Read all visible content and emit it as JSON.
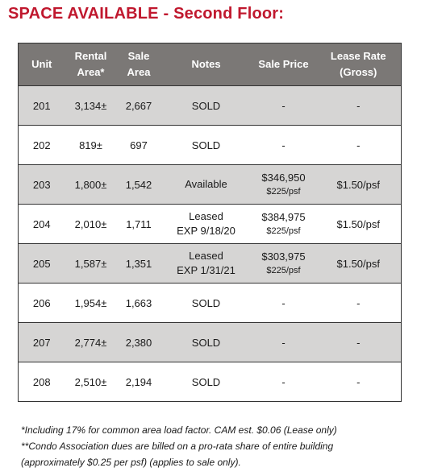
{
  "title": "SPACE AVAILABLE - Second Floor:",
  "headers": {
    "unit": "Unit",
    "rental_area_1": "Rental",
    "rental_area_2": "Area*",
    "sale_area_1": "Sale",
    "sale_area_2": "Area",
    "notes": "Notes",
    "sale_price": "Sale Price",
    "lease_rate_1": "Lease Rate",
    "lease_rate_2": "(Gross)"
  },
  "rows": [
    {
      "unit": "201",
      "rental_area": "3,134±",
      "sale_area": "2,667",
      "notes": "SOLD",
      "notes2": "",
      "sale_price": "-",
      "sale_psf": "",
      "lease_rate": "-"
    },
    {
      "unit": "202",
      "rental_area": "819±",
      "sale_area": "697",
      "notes": "SOLD",
      "notes2": "",
      "sale_price": "-",
      "sale_psf": "",
      "lease_rate": "-"
    },
    {
      "unit": "203",
      "rental_area": "1,800±",
      "sale_area": "1,542",
      "notes": "Available",
      "notes2": "",
      "sale_price": "$346,950",
      "sale_psf": "$225/psf",
      "lease_rate": "$1.50/psf"
    },
    {
      "unit": "204",
      "rental_area": "2,010±",
      "sale_area": "1,711",
      "notes": "Leased",
      "notes2": "EXP 9/18/20",
      "sale_price": "$384,975",
      "sale_psf": "$225/psf",
      "lease_rate": "$1.50/psf"
    },
    {
      "unit": "205",
      "rental_area": "1,587±",
      "sale_area": "1,351",
      "notes": "Leased",
      "notes2": "EXP 1/31/21",
      "sale_price": "$303,975",
      "sale_psf": "$225/psf",
      "lease_rate": "$1.50/psf"
    },
    {
      "unit": "206",
      "rental_area": "1,954±",
      "sale_area": "1,663",
      "notes": "SOLD",
      "notes2": "",
      "sale_price": "-",
      "sale_psf": "",
      "lease_rate": "-"
    },
    {
      "unit": "207",
      "rental_area": "2,774±",
      "sale_area": "2,380",
      "notes": "SOLD",
      "notes2": "",
      "sale_price": "-",
      "sale_psf": "",
      "lease_rate": "-"
    },
    {
      "unit": "208",
      "rental_area": "2,510±",
      "sale_area": "2,194",
      "notes": "SOLD",
      "notes2": "",
      "sale_price": "-",
      "sale_psf": "",
      "lease_rate": "-"
    }
  ],
  "footnotes": [
    "*Including 17% for common area load factor. CAM est. $0.06 (Lease only)",
    "**Condo Association dues are billed on a pro-rata share of entire building",
    "(approximately $0.25 per psf) (applies to sale only)."
  ],
  "colors": {
    "title": "#c0182e",
    "header_bg": "#7b7876",
    "shaded_row": "#d6d5d4"
  }
}
